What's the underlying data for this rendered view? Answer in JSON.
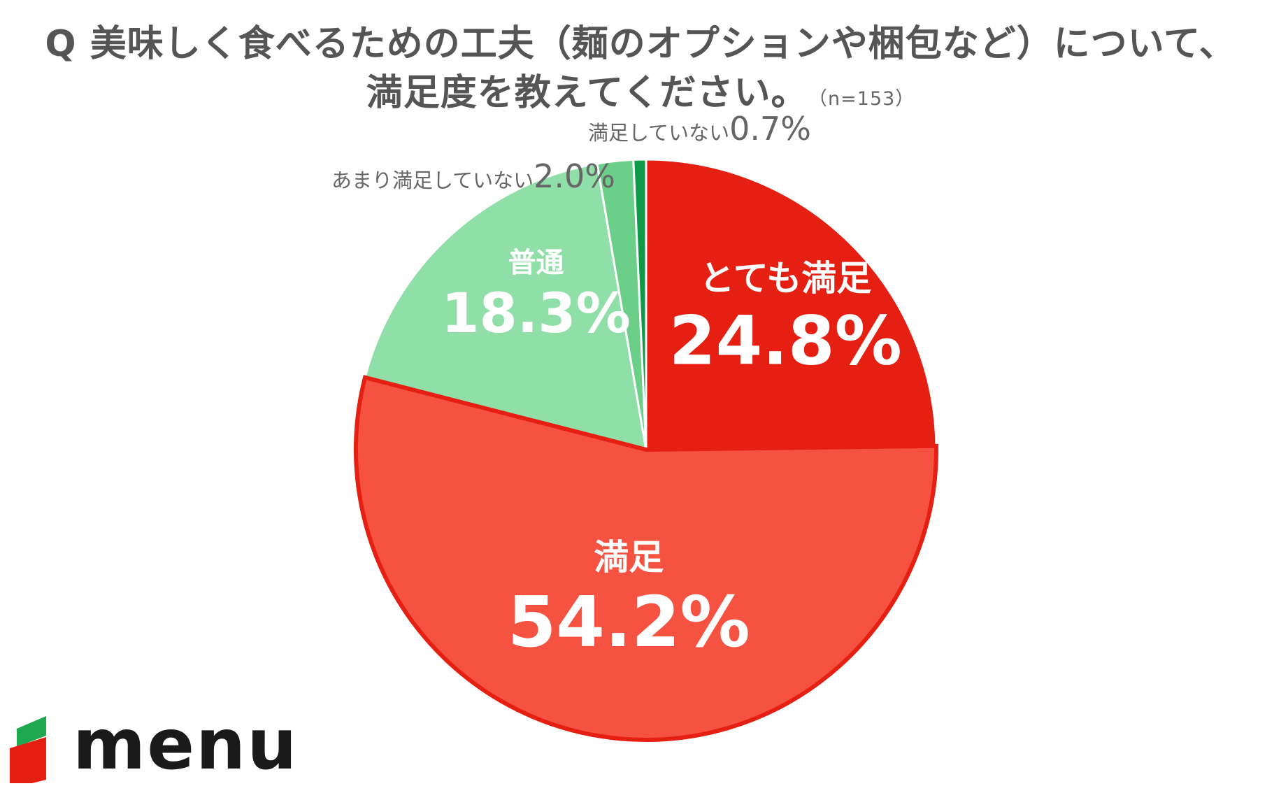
{
  "title": {
    "line1": "Q 美味しく食べるための工夫（麺のオプションや梱包など）について、",
    "line2": "満足度を教えてください。",
    "sample": "（n=153）"
  },
  "chart_data": {
    "type": "pie",
    "start": "12 o'clock, clockwise",
    "slices": [
      {
        "name": "とても満足",
        "value": 24.8,
        "label": "24.8%",
        "color": "#e51f12",
        "label_color": "#ffffff"
      },
      {
        "name": "満足",
        "value": 54.2,
        "label": "54.2%",
        "color": "#f55241",
        "label_color": "#ffffff"
      },
      {
        "name": "普通",
        "value": 18.3,
        "label": "18.3%",
        "color": "#90dea8",
        "label_color": "#ffffff"
      },
      {
        "name": "あまり満足していない",
        "value": 2.0,
        "label": "2.0%",
        "color": "#6bcf8a",
        "label_color": "#666666"
      },
      {
        "name": "満足していない",
        "value": 0.7,
        "label": "0.7%",
        "color": "#0f9a4a",
        "label_color": "#666666"
      }
    ]
  },
  "logo": {
    "text": "menu",
    "colors": {
      "red": "#e51f12",
      "green": "#1fa84f"
    }
  }
}
